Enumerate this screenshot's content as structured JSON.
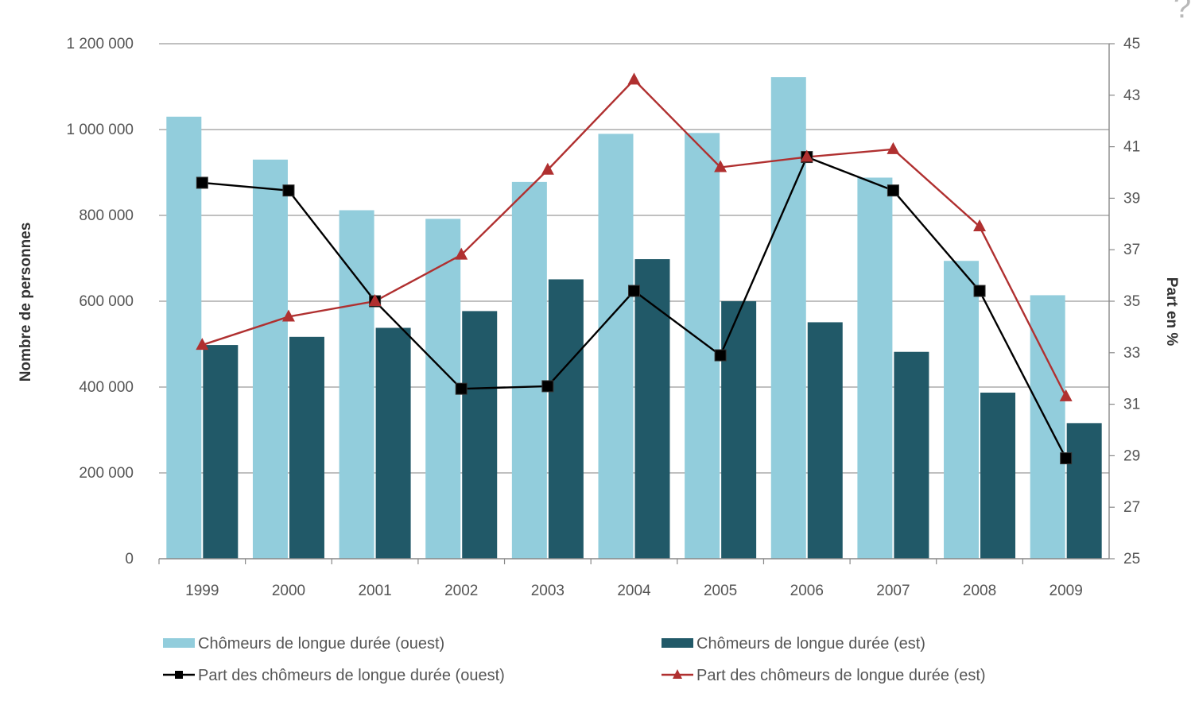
{
  "header_fragment": "?",
  "chart_data": {
    "type": "bar",
    "categories": [
      "1999",
      "2000",
      "2001",
      "2002",
      "2003",
      "2004",
      "2005",
      "2006",
      "2007",
      "2008",
      "2009"
    ],
    "series": [
      {
        "name": "Chômeurs de longue durée (ouest)",
        "kind": "bar",
        "axis": "left",
        "color": "#92cddc",
        "values": [
          1030000,
          930000,
          812000,
          792000,
          878000,
          990000,
          992000,
          1122000,
          888000,
          694000,
          614000
        ]
      },
      {
        "name": "Chômeurs de longue durée (est)",
        "kind": "bar",
        "axis": "left",
        "color": "#215968",
        "values": [
          498000,
          517000,
          538000,
          577000,
          651000,
          698000,
          600000,
          551000,
          482000,
          387000,
          316000
        ]
      },
      {
        "name": "Part des chômeurs de longue durée (ouest)",
        "kind": "line",
        "axis": "right",
        "color": "#000000",
        "marker": "square",
        "values": [
          39.6,
          39.3,
          35.0,
          31.6,
          31.7,
          35.4,
          32.9,
          40.6,
          39.3,
          35.4,
          28.9
        ]
      },
      {
        "name": "Part des chômeurs de longue durée (est)",
        "kind": "line",
        "axis": "right",
        "color": "#b03030",
        "marker": "triangle",
        "values": [
          33.3,
          34.4,
          35.0,
          36.8,
          40.1,
          43.6,
          40.2,
          40.6,
          40.9,
          37.9,
          31.3
        ]
      }
    ],
    "ylabel": "Nombre de personnes",
    "y2label": "Part en %",
    "ylim": [
      0,
      1200000
    ],
    "y2lim": [
      25,
      45
    ],
    "yticks": [
      "0",
      "200 000",
      "400 000",
      "600 000",
      "800 000",
      "1 000 000",
      "1 200 000"
    ],
    "y2ticks": [
      "25",
      "27",
      "29",
      "31",
      "33",
      "35",
      "37",
      "39",
      "41",
      "43",
      "45"
    ],
    "grid": true,
    "legend_position": "bottom"
  }
}
